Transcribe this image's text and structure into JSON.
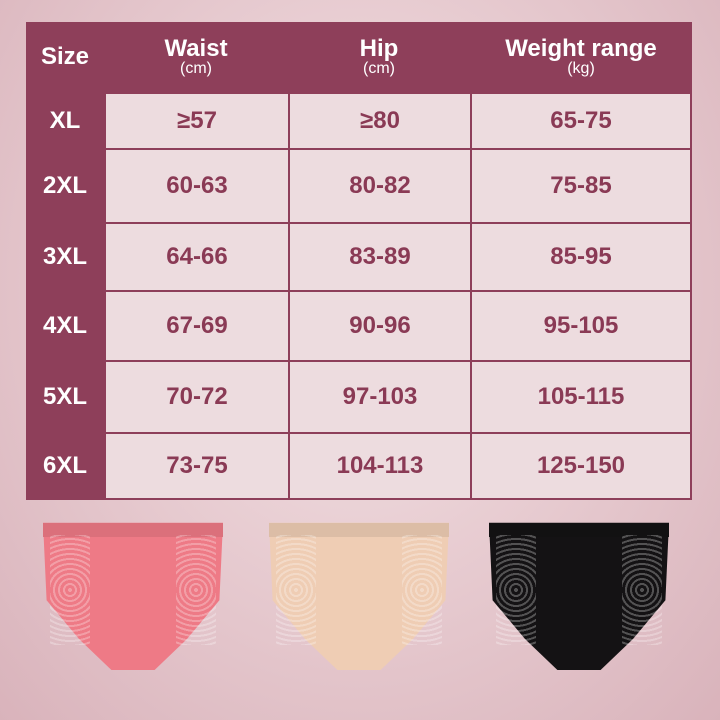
{
  "size_chart": {
    "headers": [
      {
        "label": "Size",
        "unit": ""
      },
      {
        "label": "Waist",
        "unit": "(cm)"
      },
      {
        "label": "Hip",
        "unit": "(cm)"
      },
      {
        "label": "Weight range",
        "unit": "(kg)"
      }
    ],
    "rows": [
      {
        "size": "XL",
        "waist": "≥57",
        "hip": "≥80",
        "weight": "65-75"
      },
      {
        "size": "2XL",
        "waist": "60-63",
        "hip": "80-82",
        "weight": "75-85"
      },
      {
        "size": "3XL",
        "waist": "64-66",
        "hip": "83-89",
        "weight": "85-95"
      },
      {
        "size": "4XL",
        "waist": "67-69",
        "hip": "90-96",
        "weight": "95-105"
      },
      {
        "size": "5XL",
        "waist": "70-72",
        "hip": "97-103",
        "weight": "105-115"
      },
      {
        "size": "6XL",
        "waist": "73-75",
        "hip": "104-113",
        "weight": "125-150"
      }
    ]
  },
  "colors": {
    "header": "#8e3f5a",
    "value_text": "#8a3a55",
    "cell_bg": "#f4e8ea"
  },
  "products": [
    {
      "name": "pink-brief",
      "color": "#ee7a86"
    },
    {
      "name": "beige-brief",
      "color": "#efcdb4"
    },
    {
      "name": "black-brief",
      "color": "#141214"
    }
  ]
}
